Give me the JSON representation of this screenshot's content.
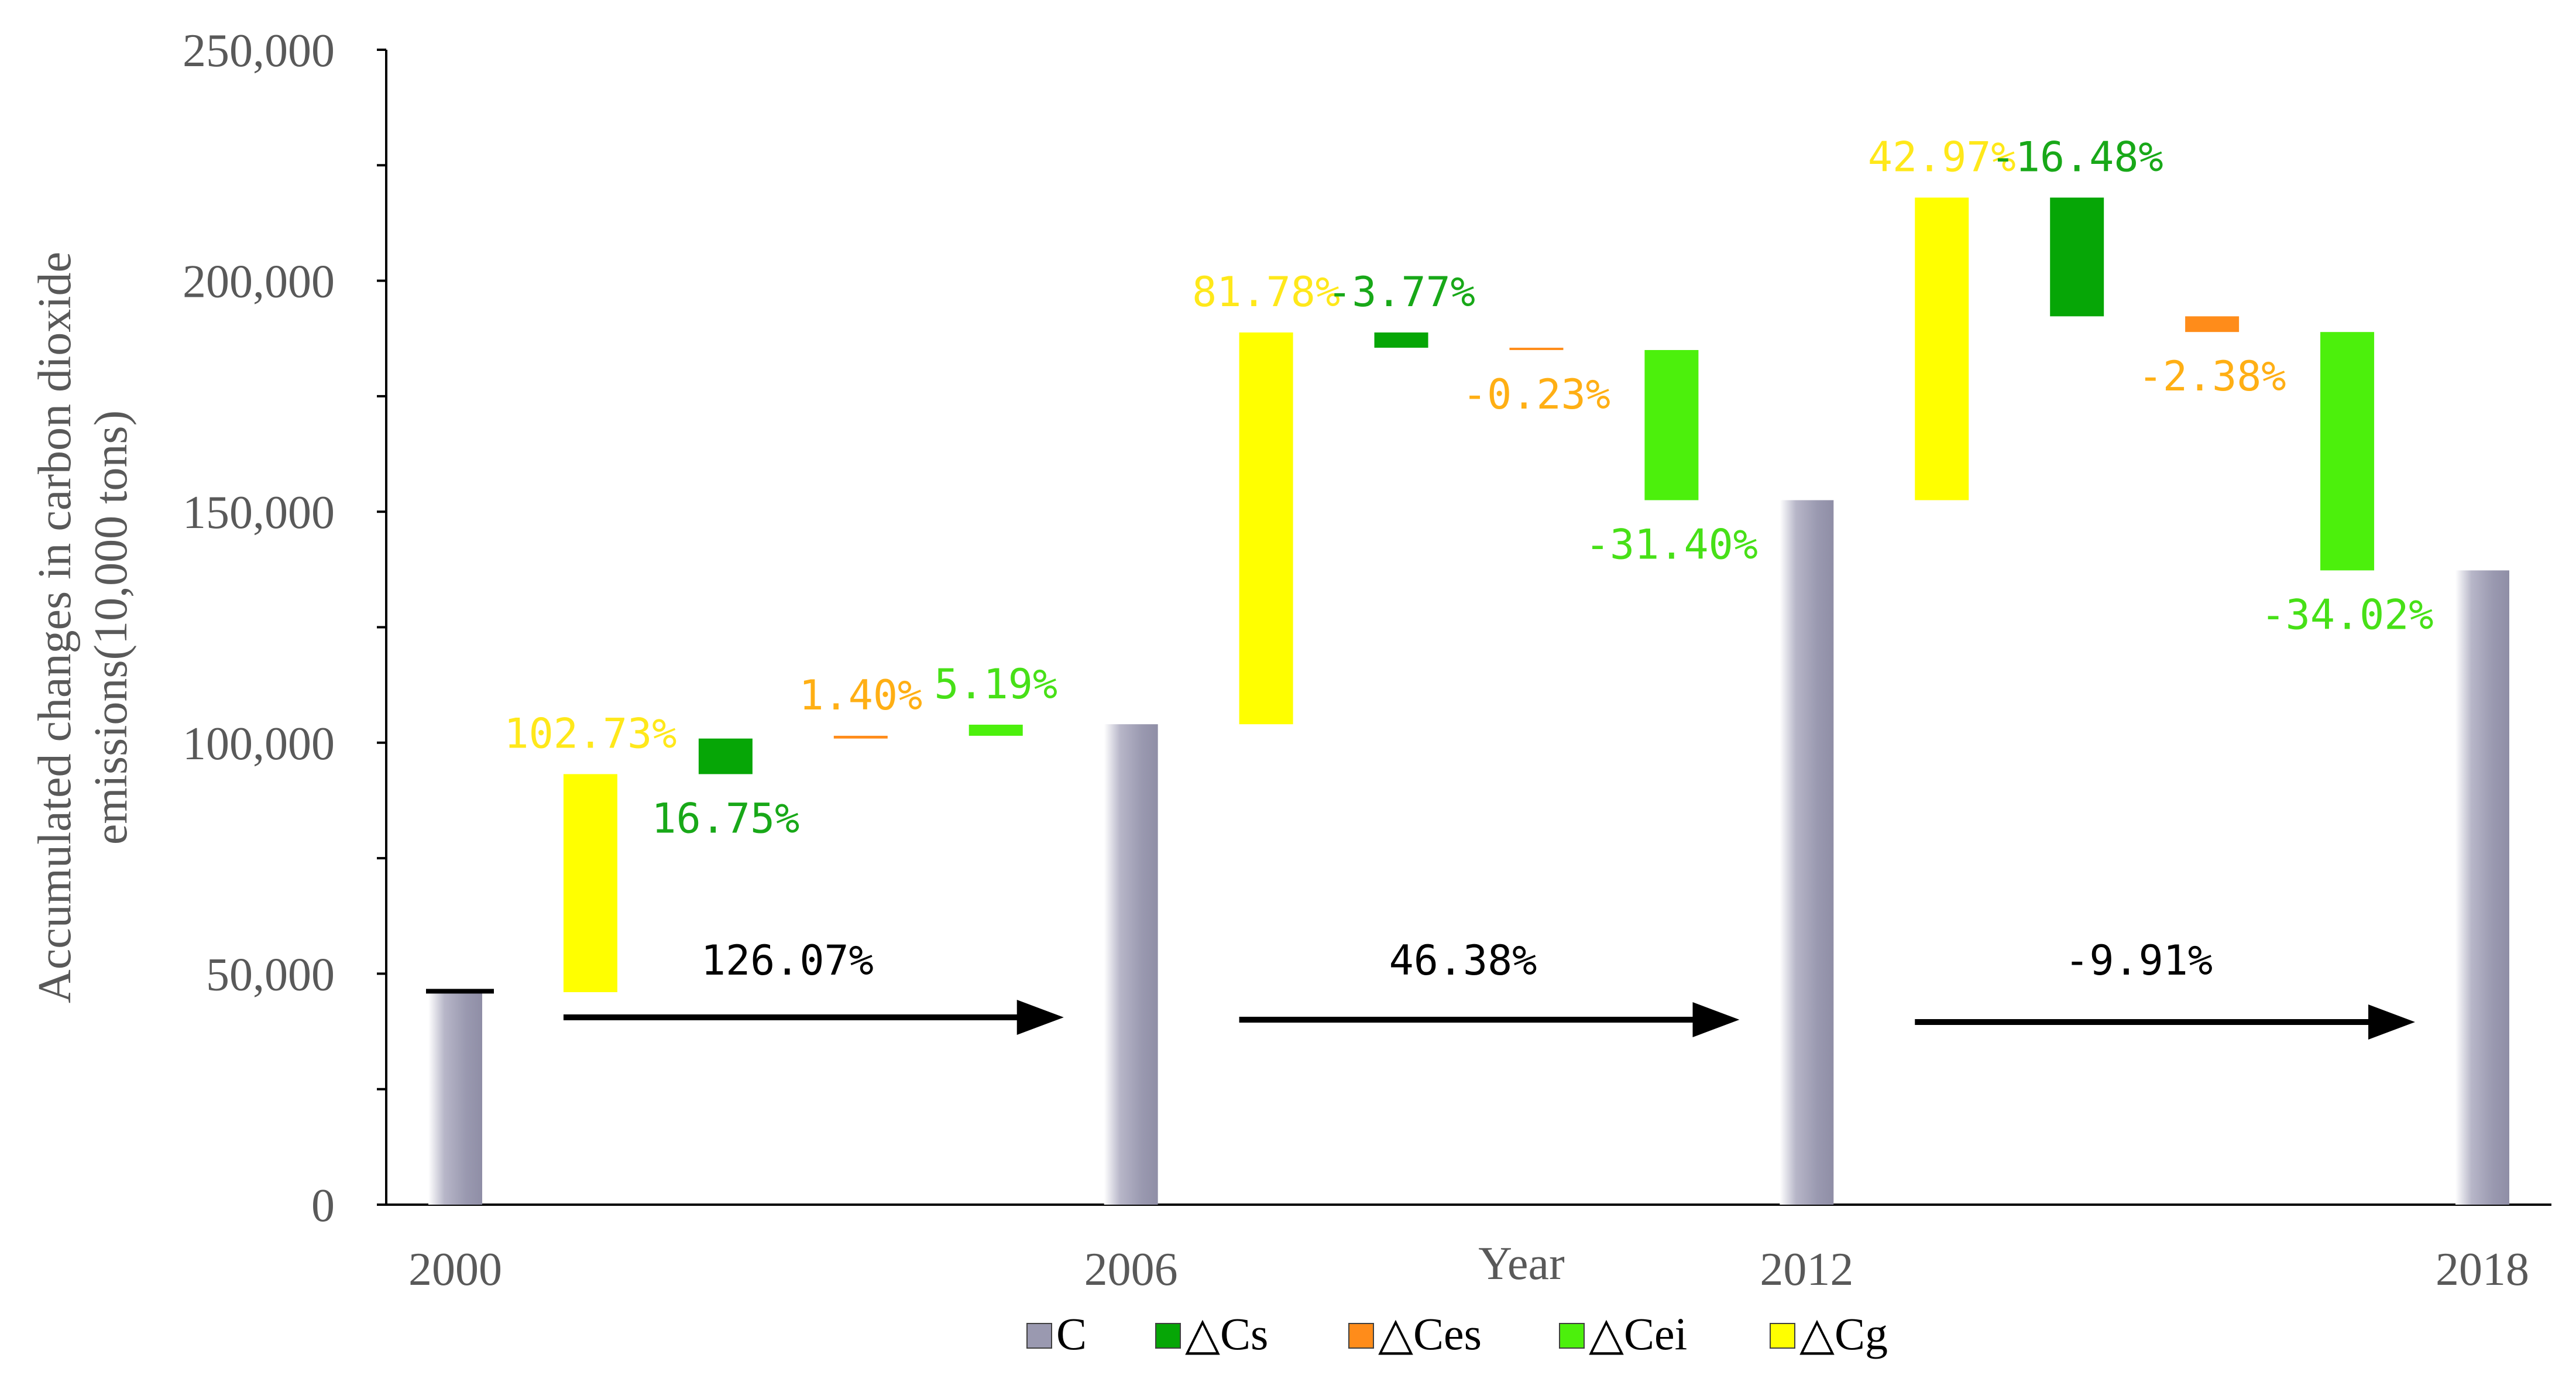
{
  "chart_data": {
    "type": "waterfall",
    "title": "",
    "xlabel": "Year",
    "ylabel_lines": [
      "Accumulated changes in carbon dioxide",
      "emissions(10,000 tons)"
    ],
    "ylim": [
      0,
      250000
    ],
    "yticks": [
      0,
      50000,
      100000,
      150000,
      200000,
      250000
    ],
    "ytick_labels": [
      "0",
      "50,000",
      "100,000",
      "150,000",
      "200,000",
      "250,000"
    ],
    "legend": {
      "placement": "bottom-center",
      "items": [
        {
          "key": "C",
          "label": "C",
          "color": "#9a99b0"
        },
        {
          "key": "dCs",
          "label": "△Cs",
          "color": "#06a606"
        },
        {
          "key": "dCes",
          "label": "△Ces",
          "color": "#ff8c1a"
        },
        {
          "key": "dCei",
          "label": "△Cei",
          "color": "#4cf00c"
        },
        {
          "key": "dCg",
          "label": "△Cg",
          "color": "#ffff00"
        }
      ]
    },
    "totals": [
      {
        "year": "2000",
        "value": 46000
      },
      {
        "year": "2006",
        "value": 104000
      },
      {
        "year": "2012",
        "value": 152500
      },
      {
        "year": "2018",
        "value": 137300
      }
    ],
    "periods": [
      {
        "span": "2000-2006",
        "total_change_label": "126.07%",
        "steps": [
          {
            "key": "dCg",
            "start": 46000,
            "end": 93200,
            "label": "102.73%",
            "label_pos": "above"
          },
          {
            "key": "dCs",
            "start": 93200,
            "end": 100900,
            "label": "16.75%",
            "label_pos": "below"
          },
          {
            "key": "dCes",
            "start": 100900,
            "end": 101500,
            "label": "1.40%",
            "label_pos": "above"
          },
          {
            "key": "dCei",
            "start": 101500,
            "end": 103900,
            "label": "5.19%",
            "label_pos": "above"
          }
        ]
      },
      {
        "span": "2006-2012",
        "total_change_label": "46.38%",
        "steps": [
          {
            "key": "dCg",
            "start": 104000,
            "end": 188800,
            "label": "81.78%",
            "label_pos": "above"
          },
          {
            "key": "dCs",
            "start": 188800,
            "end": 185500,
            "label": "-3.77%",
            "label_pos": "above"
          },
          {
            "key": "dCes",
            "start": 185500,
            "end": 185000,
            "label": "-0.23%",
            "label_pos": "below"
          },
          {
            "key": "dCei",
            "start": 185000,
            "end": 152500,
            "label": "-31.40%",
            "label_pos": "below"
          }
        ]
      },
      {
        "span": "2012-2018",
        "total_change_label": "-9.91%",
        "steps": [
          {
            "key": "dCg",
            "start": 152500,
            "end": 218000,
            "label": "42.97%",
            "label_pos": "above"
          },
          {
            "key": "dCs",
            "start": 218000,
            "end": 192300,
            "label": "-16.48%",
            "label_pos": "above"
          },
          {
            "key": "dCes",
            "start": 192300,
            "end": 188900,
            "label": "-2.38%",
            "label_pos": "below"
          },
          {
            "key": "dCei",
            "start": 188900,
            "end": 137300,
            "label": "-34.02%",
            "label_pos": "below"
          }
        ]
      }
    ],
    "label_colors": {
      "dCg": "#ffe81a",
      "dCs": "#18a818",
      "dCes": "#ffaf14",
      "dCei": "#47e017"
    },
    "marker_line_2000": {
      "value": 46200
    }
  }
}
